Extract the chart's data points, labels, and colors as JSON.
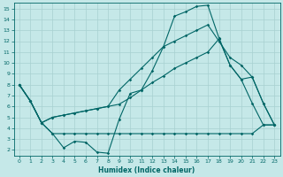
{
  "xlabel": "Humidex (Indice chaleur)",
  "xlim": [
    -0.5,
    23.5
  ],
  "ylim": [
    1.5,
    15.5
  ],
  "yticks": [
    2,
    3,
    4,
    5,
    6,
    7,
    8,
    9,
    10,
    11,
    12,
    13,
    14,
    15
  ],
  "xticks": [
    0,
    1,
    2,
    3,
    4,
    5,
    6,
    7,
    8,
    9,
    10,
    11,
    12,
    13,
    14,
    15,
    16,
    17,
    18,
    19,
    20,
    21,
    22,
    23
  ],
  "bg_color": "#c5e8e8",
  "line_color": "#006666",
  "grid_color": "#a8d0d0",
  "line1_x": [
    0,
    1,
    2,
    3,
    4,
    5,
    6,
    7,
    8,
    9,
    10,
    11,
    12,
    13,
    14,
    15,
    16,
    17,
    18,
    19,
    20,
    21,
    22,
    23
  ],
  "line1_y": [
    8.0,
    6.5,
    4.5,
    3.5,
    2.2,
    2.8,
    2.7,
    1.8,
    1.7,
    4.8,
    7.2,
    7.5,
    9.3,
    11.5,
    14.3,
    14.7,
    15.2,
    15.3,
    12.3,
    9.8,
    8.5,
    6.3,
    4.3,
    4.3
  ],
  "line2_x": [
    0,
    1,
    2,
    3,
    4,
    5,
    6,
    7,
    8,
    9,
    10,
    11,
    12,
    13,
    14,
    15,
    16,
    17,
    18,
    19,
    20,
    21,
    22,
    23
  ],
  "line2_y": [
    8.0,
    6.5,
    4.5,
    5.0,
    5.2,
    5.4,
    5.6,
    5.8,
    6.0,
    6.2,
    6.8,
    7.5,
    8.2,
    8.8,
    9.5,
    10.0,
    10.5,
    11.0,
    12.2,
    9.8,
    8.5,
    8.7,
    6.3,
    4.3
  ],
  "line3_x": [
    0,
    1,
    2,
    3,
    4,
    5,
    6,
    7,
    8,
    9,
    10,
    11,
    12,
    13,
    14,
    15,
    16,
    17,
    18,
    19,
    20,
    21,
    22,
    23
  ],
  "line3_y": [
    8.0,
    6.5,
    4.5,
    3.5,
    3.5,
    3.5,
    3.5,
    3.5,
    3.5,
    3.5,
    3.5,
    3.5,
    3.5,
    3.5,
    3.5,
    3.5,
    3.5,
    3.5,
    3.5,
    3.5,
    3.5,
    3.5,
    4.3,
    4.3
  ],
  "line4_x": [
    0,
    1,
    2,
    3,
    4,
    5,
    6,
    7,
    8,
    9,
    10,
    11,
    12,
    13,
    14,
    15,
    16,
    17,
    18,
    19,
    20,
    21,
    22,
    23
  ],
  "line4_y": [
    8.0,
    6.5,
    4.5,
    5.0,
    5.2,
    5.4,
    5.6,
    5.8,
    6.0,
    7.5,
    8.5,
    9.5,
    10.5,
    11.5,
    12.0,
    12.5,
    13.0,
    13.5,
    12.0,
    10.5,
    9.8,
    8.7,
    6.3,
    4.3
  ]
}
